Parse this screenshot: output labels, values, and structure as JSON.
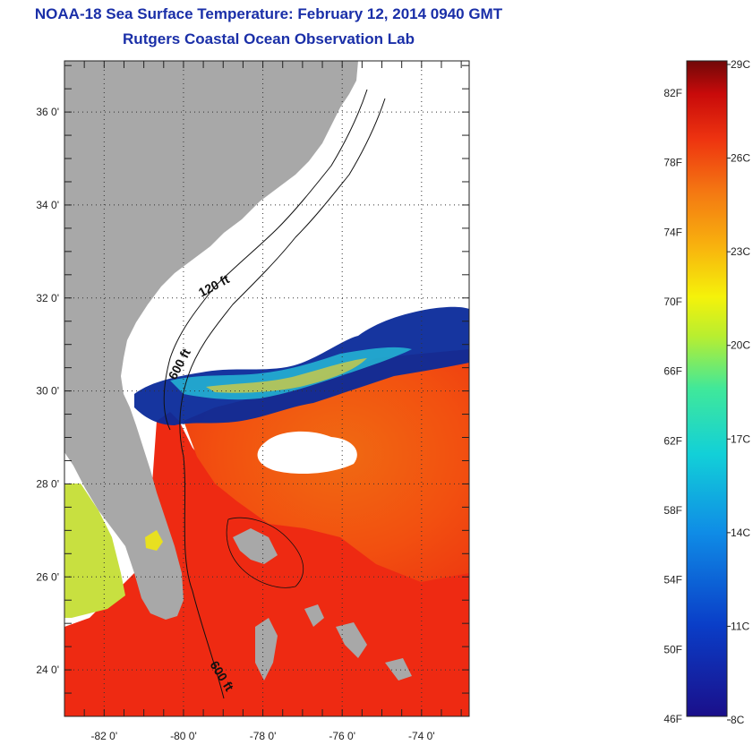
{
  "header": {
    "title": "NOAA-18 Sea Surface Temperature:  February 12, 2014 0940 GMT",
    "subtitle": "Rutgers Coastal Ocean Observation Lab"
  },
  "map": {
    "lat_ticks": [
      {
        "value": 36,
        "label": "36 0'"
      },
      {
        "value": 34,
        "label": "34 0'"
      },
      {
        "value": 32,
        "label": "32 0'"
      },
      {
        "value": 30,
        "label": "30 0'"
      },
      {
        "value": 28,
        "label": "28 0'"
      },
      {
        "value": 26,
        "label": "26 0'"
      },
      {
        "value": 24,
        "label": "24 0'"
      }
    ],
    "lon_ticks": [
      {
        "value": -82,
        "label": "-82 0'"
      },
      {
        "value": -80,
        "label": "-80 0'"
      },
      {
        "value": -78,
        "label": "-78 0'"
      },
      {
        "value": -76,
        "label": "-76 0'"
      },
      {
        "value": -74,
        "label": "-74 0'"
      }
    ],
    "lon_range": [
      -83.0,
      -72.8
    ],
    "lat_range": [
      23.0,
      37.1
    ],
    "contours": [
      {
        "label": "120 ft"
      },
      {
        "label": "600 ft"
      },
      {
        "label": "600 ft"
      }
    ],
    "colors": {
      "land": "#a8a8a8",
      "cloud": "#ffffff",
      "warm": "#f02010",
      "gulfstream": "#f05a0c"
    }
  },
  "colorbar": {
    "fahrenheit": [
      "82F",
      "78F",
      "74F",
      "70F",
      "66F",
      "62F",
      "58F",
      "54F",
      "50F",
      "46F"
    ],
    "celsius": [
      "29C",
      "26C",
      "23C",
      "20C",
      "17C",
      "14C",
      "11C",
      "8C"
    ],
    "range_c": [
      8,
      29
    ]
  }
}
